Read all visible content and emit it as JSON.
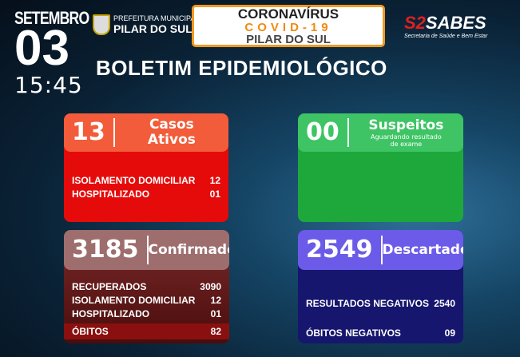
{
  "date": {
    "month": "SETEMBRO",
    "day": "03",
    "time": "15:45"
  },
  "prefeitura": {
    "line1": "PREFEITURA MUNICIPAL",
    "line2": "PILAR DO SUL"
  },
  "banner": {
    "line1": "CORONAVÍRUS",
    "line2": "COVID-19",
    "line3": "PILAR DO SUL"
  },
  "sabes": {
    "logo": "SABES",
    "subtitle": "Secretaria de Saúde e Bem Estar"
  },
  "title": "BOLETIM EPIDEMIOLÓGICO",
  "ativos": {
    "value": "13",
    "label1": "Casos",
    "label2": "Ativos",
    "rows": [
      {
        "label": "ISOLAMENTO DOMICILIAR",
        "value": "12"
      },
      {
        "label": "HOSPITALIZADO",
        "value": "01"
      }
    ]
  },
  "suspeitos": {
    "value": "00",
    "label": "Suspeitos",
    "sub1": "Aguardando resultado",
    "sub2": "de exame"
  },
  "confirmados": {
    "value": "3185",
    "label": "Confirmados",
    "rows": [
      {
        "label": "RECUPERADOS",
        "value": "3090"
      },
      {
        "label": "ISOLAMENTO DOMICILIAR",
        "value": "12"
      },
      {
        "label": "HOSPITALIZADO",
        "value": "01"
      },
      {
        "label": "ÓBITOS",
        "value": "82"
      }
    ]
  },
  "descartados": {
    "value": "2549",
    "label": "Descartados",
    "rows": [
      {
        "label": "RESULTADOS NEGATIVOS",
        "value": "2540"
      },
      {
        "label": "ÓBITOS NEGATIVOS",
        "value": "09"
      }
    ]
  },
  "colors": {
    "ativos_header": "#f25c3a",
    "ativos_body": "#e60b0b",
    "suspeitos_header": "#3ec464",
    "suspeitos_body": "#1ea83c",
    "confirmados_header": "#9e6e6e",
    "confirmados_body": "#5a1010",
    "descartados_header": "#6b5be8",
    "descartados_body": "#16166e",
    "accent": "#f29a1e"
  }
}
